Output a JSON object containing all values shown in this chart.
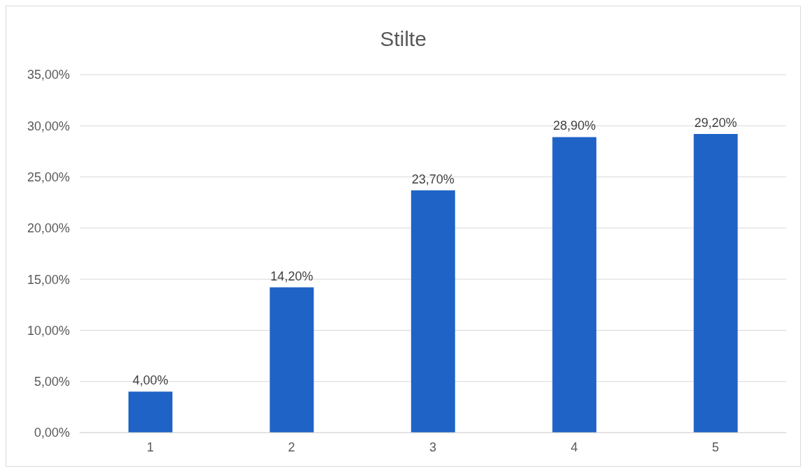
{
  "chart_data": {
    "type": "bar",
    "title": "Stilte",
    "categories": [
      "1",
      "2",
      "3",
      "4",
      "5"
    ],
    "values": [
      4.0,
      14.2,
      23.7,
      28.9,
      29.2
    ],
    "value_labels": [
      "4,00%",
      "14,20%",
      "23,70%",
      "28,90%",
      "29,20%"
    ],
    "color": "#1f63c6",
    "ylim": [
      0,
      35
    ],
    "yticks": [
      {
        "value": 0,
        "label": "0,00%"
      },
      {
        "value": 5,
        "label": "5,00%"
      },
      {
        "value": 10,
        "label": "10,00%"
      },
      {
        "value": 15,
        "label": "15,00%"
      },
      {
        "value": 20,
        "label": "20,00%"
      },
      {
        "value": 25,
        "label": "25,00%"
      },
      {
        "value": 30,
        "label": "30,00%"
      },
      {
        "value": 35,
        "label": "35,00%"
      }
    ],
    "grid": "y"
  }
}
